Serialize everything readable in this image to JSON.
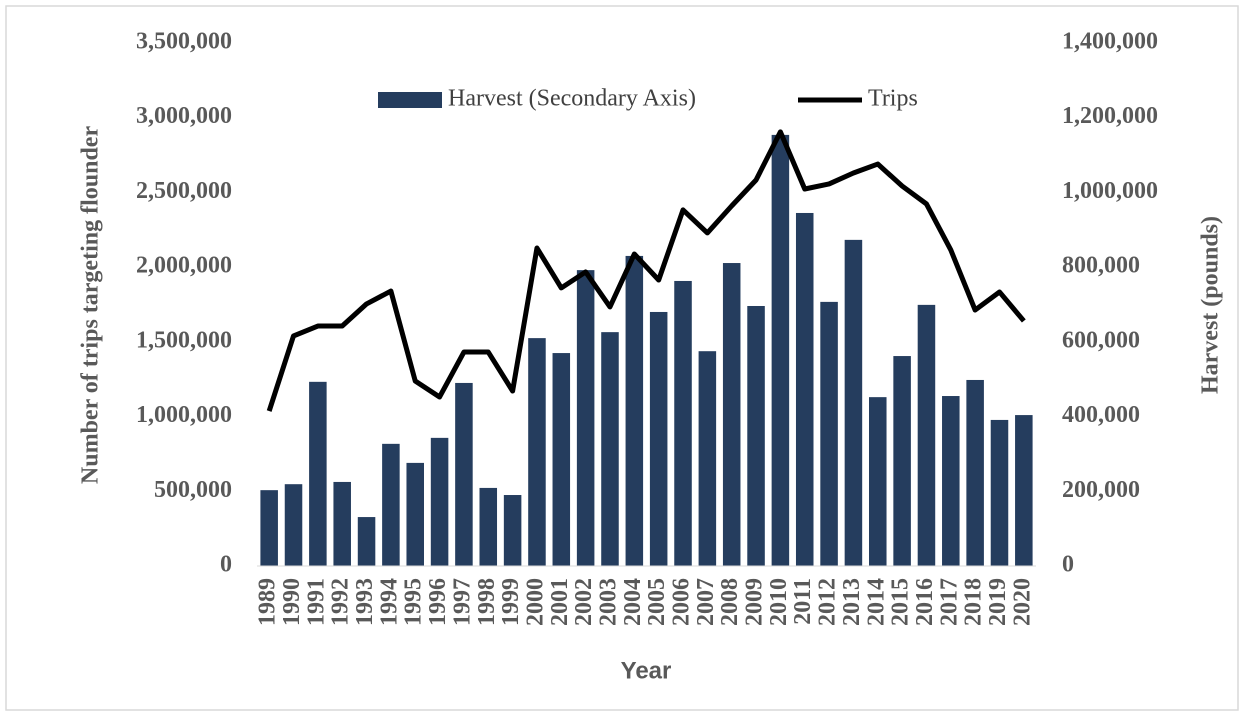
{
  "chart_data": {
    "type": "bar",
    "y_label": "Number of trips targeting flounder",
    "y2_label": "Harvest (pounds)",
    "x_label": "Year",
    "categories": [
      "1989",
      "1990",
      "1991",
      "1992",
      "1993",
      "1994",
      "1995",
      "1996",
      "1997",
      "1998",
      "1999",
      "2000",
      "2001",
      "2002",
      "2003",
      "2004",
      "2005",
      "2006",
      "2007",
      "2008",
      "2009",
      "2010",
      "2011",
      "2012",
      "2013",
      "2014",
      "2015",
      "2016",
      "2017",
      "2018",
      "2019",
      "2020"
    ],
    "series": [
      {
        "name": "Harvest (Secondary Axis)",
        "type": "bar",
        "axis": "y2",
        "color": "#253d5e",
        "values": [
          203000,
          219000,
          493000,
          225000,
          131000,
          327000,
          276000,
          343000,
          490000,
          209000,
          190000,
          610000,
          570000,
          792000,
          626000,
          830000,
          680000,
          763000,
          575000,
          811000,
          696000,
          1154000,
          945000,
          707000,
          873000,
          452000,
          562000,
          699000,
          455000,
          498000,
          391000,
          404000
        ]
      },
      {
        "name": "Trips",
        "type": "line",
        "color": "#000000",
        "values": [
          1037000,
          1540000,
          1606000,
          1606000,
          1754000,
          1840000,
          1238000,
          1131000,
          1432000,
          1432000,
          1171000,
          2128000,
          1861000,
          1968000,
          1734000,
          2088000,
          1914000,
          2383000,
          2229000,
          2410000,
          2583000,
          2905000,
          2523000,
          2557000,
          2630000,
          2690000,
          2543000,
          2423000,
          2115000,
          1713000,
          1834000,
          1640000
        ]
      }
    ],
    "ylim": [
      0,
      3500000
    ],
    "yticks": [
      0,
      {
        "value": 500000,
        "label": "500,000"
      },
      {
        "value": 1000000,
        "label": "1,000,000"
      },
      {
        "value": 1500000,
        "label": "1,500,000"
      },
      {
        "value": 2000000,
        "label": "2,000,000"
      },
      {
        "value": 2500000,
        "label": "2,500,000"
      },
      {
        "value": 3000000,
        "label": "3,000,000"
      },
      {
        "value": 3500000,
        "label": "3,500,000"
      }
    ],
    "y2lim": [
      0,
      1400000
    ],
    "y2ticks": [
      0,
      {
        "value": 200000,
        "label": "200,000"
      },
      {
        "value": 400000,
        "label": "400,000"
      },
      {
        "value": 600000,
        "label": "600,000"
      },
      {
        "value": 800000,
        "label": "800,000"
      },
      {
        "value": 1000000,
        "label": "1,000,000"
      },
      {
        "value": 1200000,
        "label": "1,200,000"
      },
      {
        "value": 1400000,
        "label": "1,400,000"
      }
    ],
    "legend": "top",
    "grid": false
  }
}
